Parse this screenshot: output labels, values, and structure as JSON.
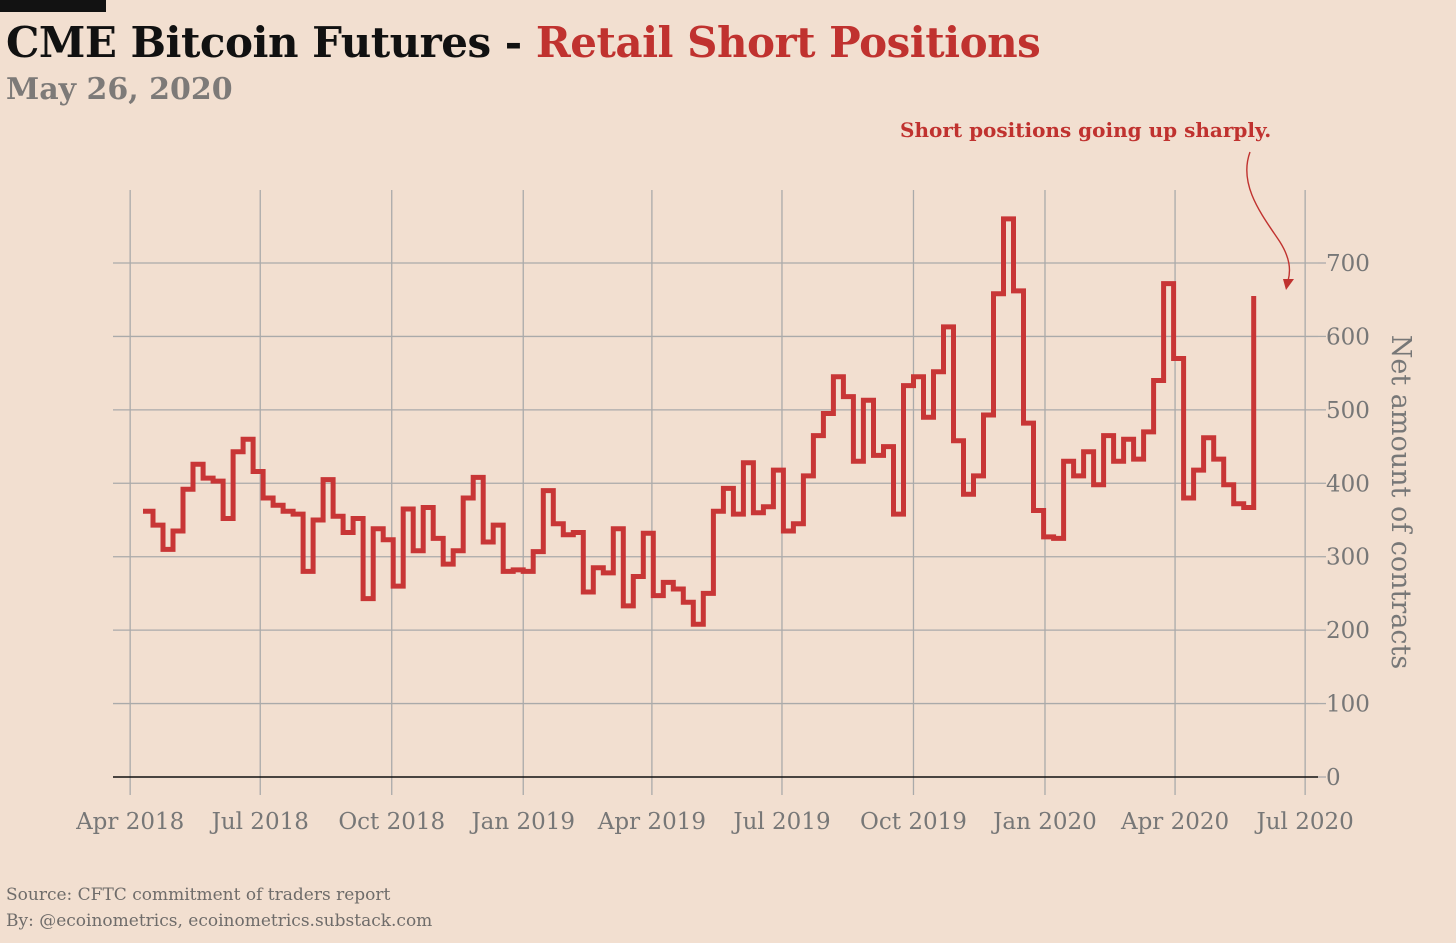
{
  "header": {
    "title_main": "CME Bitcoin Futures - ",
    "title_accent": "Retail Short Positions",
    "subtitle": "May 26, 2020"
  },
  "annotation": {
    "text": "Short positions going up sharply."
  },
  "footer": {
    "source": "Source: CFTC commitment of traders report",
    "byline": "By: @ecoinometrics, ecoinometrics.substack.com"
  },
  "colors": {
    "background": "#f2dfd0",
    "series": "#c83636",
    "accent": "#c0322f",
    "grid": "#aaaaaa",
    "zero_line": "#111111",
    "tick_text": "#777777"
  },
  "chart_data": {
    "type": "line",
    "step": true,
    "title": "CME Bitcoin Futures - Retail Short Positions",
    "subtitle": "May 26, 2020",
    "xlabel": "",
    "ylabel": "Net amount of contracts",
    "y_axis_side": "right",
    "ylim": [
      0,
      760
    ],
    "yticks": [
      0,
      100,
      200,
      300,
      400,
      500,
      600,
      700
    ],
    "xlim": [
      "2018-03-20",
      "2020-07-10"
    ],
    "xticks": [
      "2018-04-01",
      "2018-07-01",
      "2018-10-01",
      "2019-01-01",
      "2019-04-01",
      "2019-07-01",
      "2019-10-01",
      "2020-01-01",
      "2020-04-01",
      "2020-07-01"
    ],
    "xtick_labels": [
      "Apr 2018",
      "Jul 2018",
      "Oct 2018",
      "Jan 2019",
      "Apr 2019",
      "Jul 2019",
      "Oct 2019",
      "Jan 2020",
      "Apr 2020",
      "Jul 2020"
    ],
    "grid": true,
    "series": [
      {
        "x": [
          "2018-04-10",
          "2018-04-17",
          "2018-04-24",
          "2018-05-01",
          "2018-05-08",
          "2018-05-15",
          "2018-05-22",
          "2018-05-29",
          "2018-06-05",
          "2018-06-12",
          "2018-06-19",
          "2018-06-26",
          "2018-07-03",
          "2018-07-10",
          "2018-07-17",
          "2018-07-24",
          "2018-07-31",
          "2018-08-07",
          "2018-08-14",
          "2018-08-21",
          "2018-08-28",
          "2018-09-04",
          "2018-09-11",
          "2018-09-18",
          "2018-09-25",
          "2018-10-02",
          "2018-10-09",
          "2018-10-16",
          "2018-10-23",
          "2018-10-30",
          "2018-11-06",
          "2018-11-13",
          "2018-11-20",
          "2018-11-27",
          "2018-12-04",
          "2018-12-11",
          "2018-12-18",
          "2018-12-25",
          "2019-01-01",
          "2019-01-08",
          "2019-01-15",
          "2019-01-22",
          "2019-01-29",
          "2019-02-05",
          "2019-02-12",
          "2019-02-19",
          "2019-02-26",
          "2019-03-05",
          "2019-03-12",
          "2019-03-19",
          "2019-03-26",
          "2019-04-02",
          "2019-04-09",
          "2019-04-16",
          "2019-04-23",
          "2019-04-30",
          "2019-05-07",
          "2019-05-14",
          "2019-05-21",
          "2019-05-28",
          "2019-06-04",
          "2019-06-11",
          "2019-06-18",
          "2019-06-25",
          "2019-07-02",
          "2019-07-09",
          "2019-07-16",
          "2019-07-23",
          "2019-07-30",
          "2019-08-06",
          "2019-08-13",
          "2019-08-20",
          "2019-08-27",
          "2019-09-03",
          "2019-09-10",
          "2019-09-17",
          "2019-09-24",
          "2019-10-01",
          "2019-10-08",
          "2019-10-15",
          "2019-10-22",
          "2019-10-29",
          "2019-11-05",
          "2019-11-12",
          "2019-11-19",
          "2019-11-26",
          "2019-12-03",
          "2019-12-10",
          "2019-12-17",
          "2019-12-24",
          "2019-12-31",
          "2020-01-07",
          "2020-01-14",
          "2020-01-21",
          "2020-01-28",
          "2020-02-04",
          "2020-02-11",
          "2020-02-18",
          "2020-02-25",
          "2020-03-03",
          "2020-03-10",
          "2020-03-17",
          "2020-03-24",
          "2020-03-31",
          "2020-04-07",
          "2020-04-14",
          "2020-04-21",
          "2020-04-28",
          "2020-05-05",
          "2020-05-12",
          "2020-05-19",
          "2020-05-26"
        ],
        "values": [
          362,
          343,
          310,
          335,
          392,
          426,
          407,
          403,
          352,
          443,
          460,
          416,
          380,
          370,
          362,
          358,
          280,
          350,
          405,
          355,
          333,
          352,
          243,
          338,
          323,
          260,
          365,
          308,
          367,
          325,
          290,
          308,
          380,
          408,
          320,
          343,
          280,
          282,
          280,
          307,
          390,
          345,
          330,
          333,
          252,
          285,
          278,
          338,
          233,
          273,
          332,
          247,
          265,
          256,
          238,
          208,
          250,
          362,
          393,
          358,
          428,
          360,
          368,
          418,
          335,
          345,
          410,
          465,
          495,
          545,
          518,
          430,
          513,
          438,
          450,
          358,
          533,
          545,
          490,
          552,
          613,
          458,
          385,
          410,
          493,
          658,
          760,
          662,
          482,
          363,
          327,
          325,
          430,
          410,
          443,
          398,
          465,
          430,
          460,
          433,
          470,
          540,
          672,
          570,
          380,
          418,
          462,
          433,
          398,
          372,
          367,
          655
        ]
      }
    ]
  }
}
